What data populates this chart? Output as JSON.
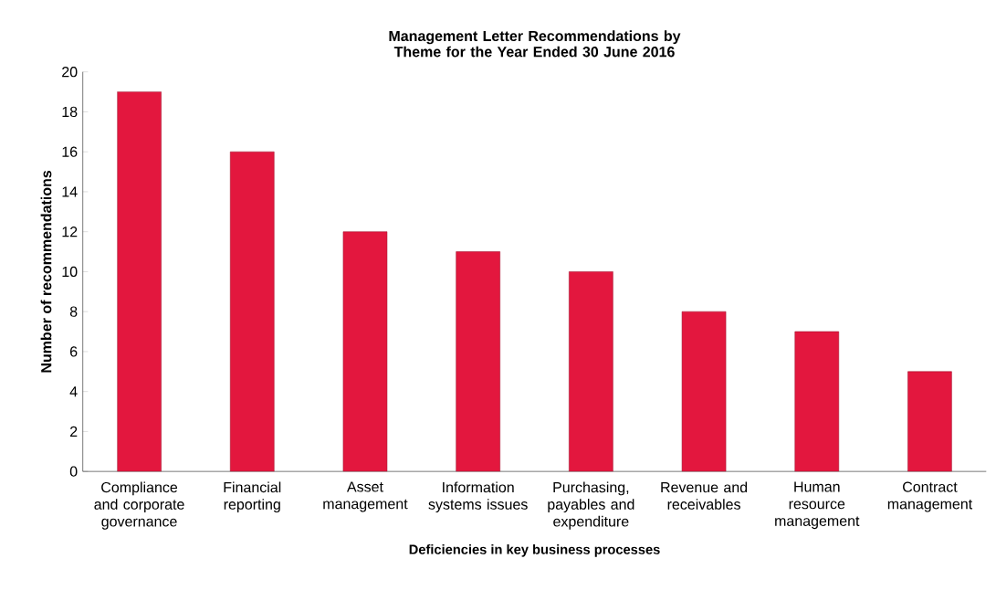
{
  "chart_data": {
    "type": "bar",
    "title": "Management Letter Recommendations by Theme for the Year Ended 30 June 2016",
    "xlabel": "Deficiencies in key business processes",
    "ylabel": "Number of recommendations",
    "categories": [
      "Compliance and corporate governance",
      "Financial reporting",
      "Asset management",
      "Information systems issues",
      "Purchasing, payables and expenditure",
      "Revenue and receivables",
      "Human resource management",
      "Contract management"
    ],
    "values": [
      19,
      16,
      12,
      11,
      10,
      8,
      7,
      5
    ],
    "color": "#e3173e",
    "ylim": [
      0,
      20
    ],
    "yticks": [
      0,
      2,
      4,
      6,
      8,
      10,
      12,
      14,
      16,
      18,
      20
    ],
    "grid": false
  }
}
